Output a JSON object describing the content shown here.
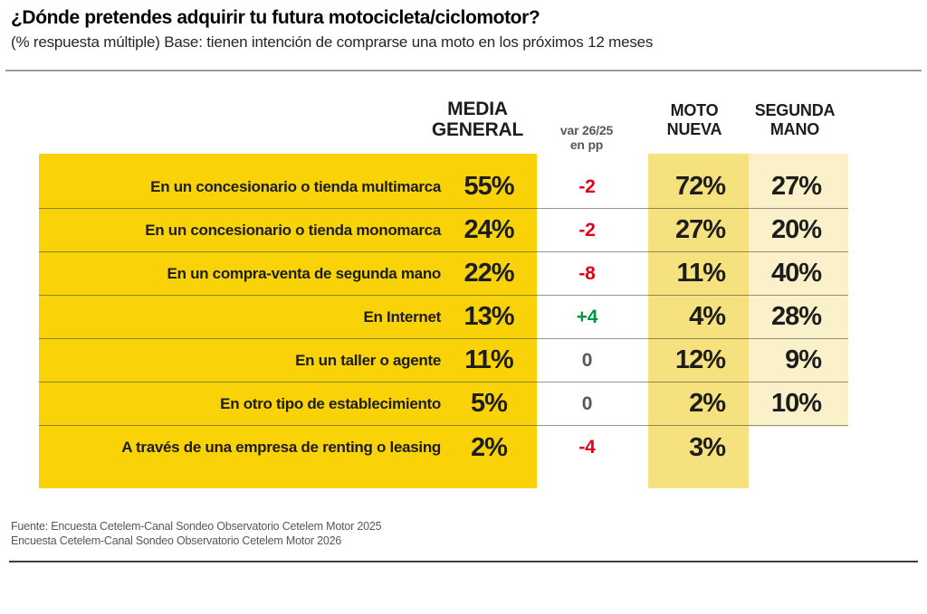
{
  "header": {
    "title": "¿Dónde pretendes adquirir tu futura  motocicleta/ciclomotor?",
    "subtitle": "(% respuesta múltiple) Base: tienen intención de comprarse una moto en los próximos 12 meses"
  },
  "columns": {
    "media_line1": "MEDIA",
    "media_line2": "GENERAL",
    "var_line1": "var 26/25",
    "var_line2": "en pp",
    "moto_line1": "MOTO",
    "moto_line2": "NUEVA",
    "segunda_line1": "SEGUNDA",
    "segunda_line2": "MANO"
  },
  "rows": [
    {
      "label": "En un concesionario o tienda multimarca",
      "media": "55%",
      "var": "-2",
      "var_color": "red",
      "moto": "72%",
      "segunda": "27%"
    },
    {
      "label": "En un concesionario o tienda monomarca",
      "media": "24%",
      "var": "-2",
      "var_color": "red",
      "moto": "27%",
      "segunda": "20%"
    },
    {
      "label": "En un compra-venta de segunda mano",
      "media": "22%",
      "var": "-8",
      "var_color": "red",
      "moto": "11%",
      "segunda": "40%"
    },
    {
      "label": "En Internet",
      "media": "13%",
      "var": "+4",
      "var_color": "green",
      "moto": "4%",
      "segunda": "28%"
    },
    {
      "label": "En un taller o agente",
      "media": "11%",
      "var": "0",
      "var_color": "gray",
      "moto": "12%",
      "segunda": "9%"
    },
    {
      "label": "En otro tipo de establecimiento",
      "media": "5%",
      "var": "0",
      "var_color": "gray",
      "moto": "2%",
      "segunda": "10%"
    },
    {
      "label": "A través de una empresa de renting o leasing",
      "media": "2%",
      "var": "-4",
      "var_color": "red",
      "moto": "3%",
      "segunda": ""
    }
  ],
  "footer": {
    "line1": "Fuente: Encuesta Cetelem-Canal Sondeo Observatorio Cetelem Motor 2025",
    "line2": "Encuesta Cetelem-Canal Sondeo Observatorio Cetelem Motor 2026"
  },
  "colors": {
    "main_yellow": "#f9d308",
    "moto_yellow": "#f5e17d",
    "segunda_yellow": "#faf1ca",
    "negative_red": "#e2001a",
    "positive_green": "#009640",
    "zero_gray": "#575756"
  },
  "chart_data": {
    "type": "table",
    "title": "¿Dónde pretendes adquirir tu futura motocicleta/ciclomotor?",
    "subtitle": "(% respuesta múltiple) Base: tienen intención de comprarse una moto en los próximos 12 meses",
    "categories": [
      "En un concesionario o tienda multimarca",
      "En un concesionario o tienda monomarca",
      "En un compra-venta de segunda mano",
      "En Internet",
      "En un taller o agente",
      "En otro tipo de establecimiento",
      "A través de una empresa de renting o leasing"
    ],
    "series": [
      {
        "name": "Media general (%)",
        "values": [
          55,
          24,
          22,
          13,
          11,
          5,
          2
        ]
      },
      {
        "name": "var 26/25 en pp",
        "values": [
          -2,
          -2,
          -8,
          4,
          0,
          0,
          -4
        ]
      },
      {
        "name": "Moto nueva (%)",
        "values": [
          72,
          27,
          11,
          4,
          12,
          2,
          3
        ]
      },
      {
        "name": "Segunda mano (%)",
        "values": [
          27,
          20,
          40,
          28,
          9,
          10,
          null
        ]
      }
    ],
    "source": [
      "Fuente: Encuesta Cetelem-Canal Sondeo Observatorio Cetelem Motor 2025",
      "Encuesta Cetelem-Canal Sondeo Observatorio Cetelem Motor 2026"
    ]
  }
}
